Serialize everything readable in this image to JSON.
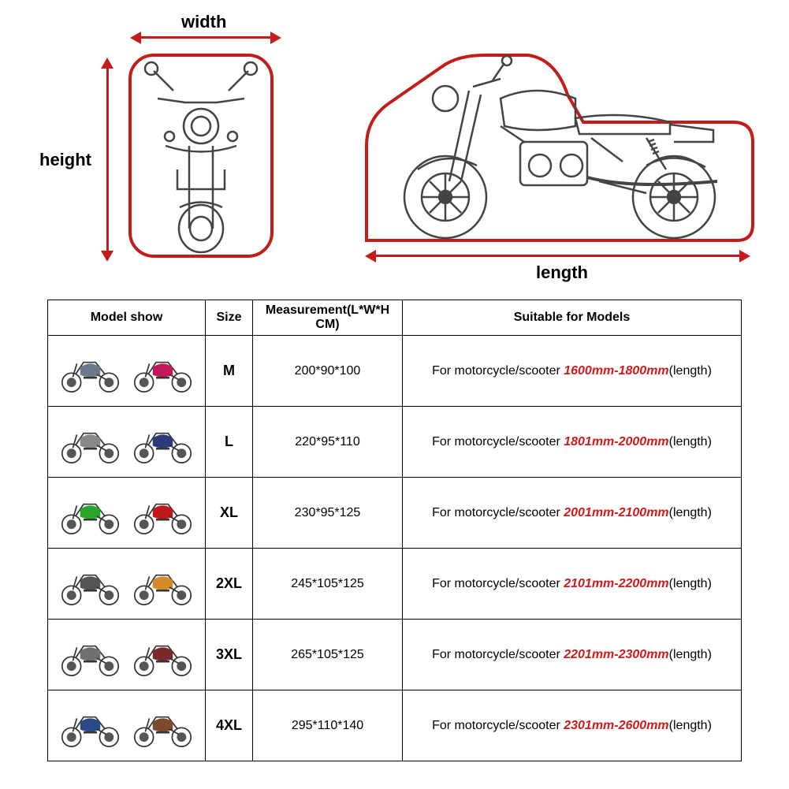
{
  "diagram": {
    "width_label": "width",
    "height_label": "height",
    "length_label": "length",
    "outline_color": "#c41b1b",
    "line_color": "#444444",
    "arrow_color": "#c41b1b"
  },
  "table": {
    "headers": {
      "model": "Model show",
      "size": "Size",
      "measurement": "Measurement(L*W*H CM)",
      "suitable": "Suitable for Models"
    },
    "suitable_prefix": "For motorcycle/scooter ",
    "suitable_suffix": "(length)",
    "range_color": "#d11a1a",
    "rows": [
      {
        "size": "M",
        "measurement": "200*90*100",
        "range": "1600mm-1800mm",
        "thumb_colors": [
          "#6a7a8a",
          "#c2185b"
        ]
      },
      {
        "size": "L",
        "measurement": "220*95*110",
        "range": "1801mm-2000mm",
        "thumb_colors": [
          "#888888",
          "#2a3a7a"
        ]
      },
      {
        "size": "XL",
        "measurement": "230*95*125",
        "range": "2001mm-2100mm",
        "thumb_colors": [
          "#2aa52a",
          "#c01818"
        ]
      },
      {
        "size": "2XL",
        "measurement": "245*105*125",
        "range": "2101mm-2200mm",
        "thumb_colors": [
          "#555555",
          "#d48a2a"
        ]
      },
      {
        "size": "3XL",
        "measurement": "265*105*125",
        "range": "2201mm-2300mm",
        "thumb_colors": [
          "#707070",
          "#7a2a2a"
        ]
      },
      {
        "size": "4XL",
        "measurement": "295*110*140",
        "range": "2301mm-2600mm",
        "thumb_colors": [
          "#2a4a8a",
          "#7a4a2a"
        ]
      }
    ]
  }
}
